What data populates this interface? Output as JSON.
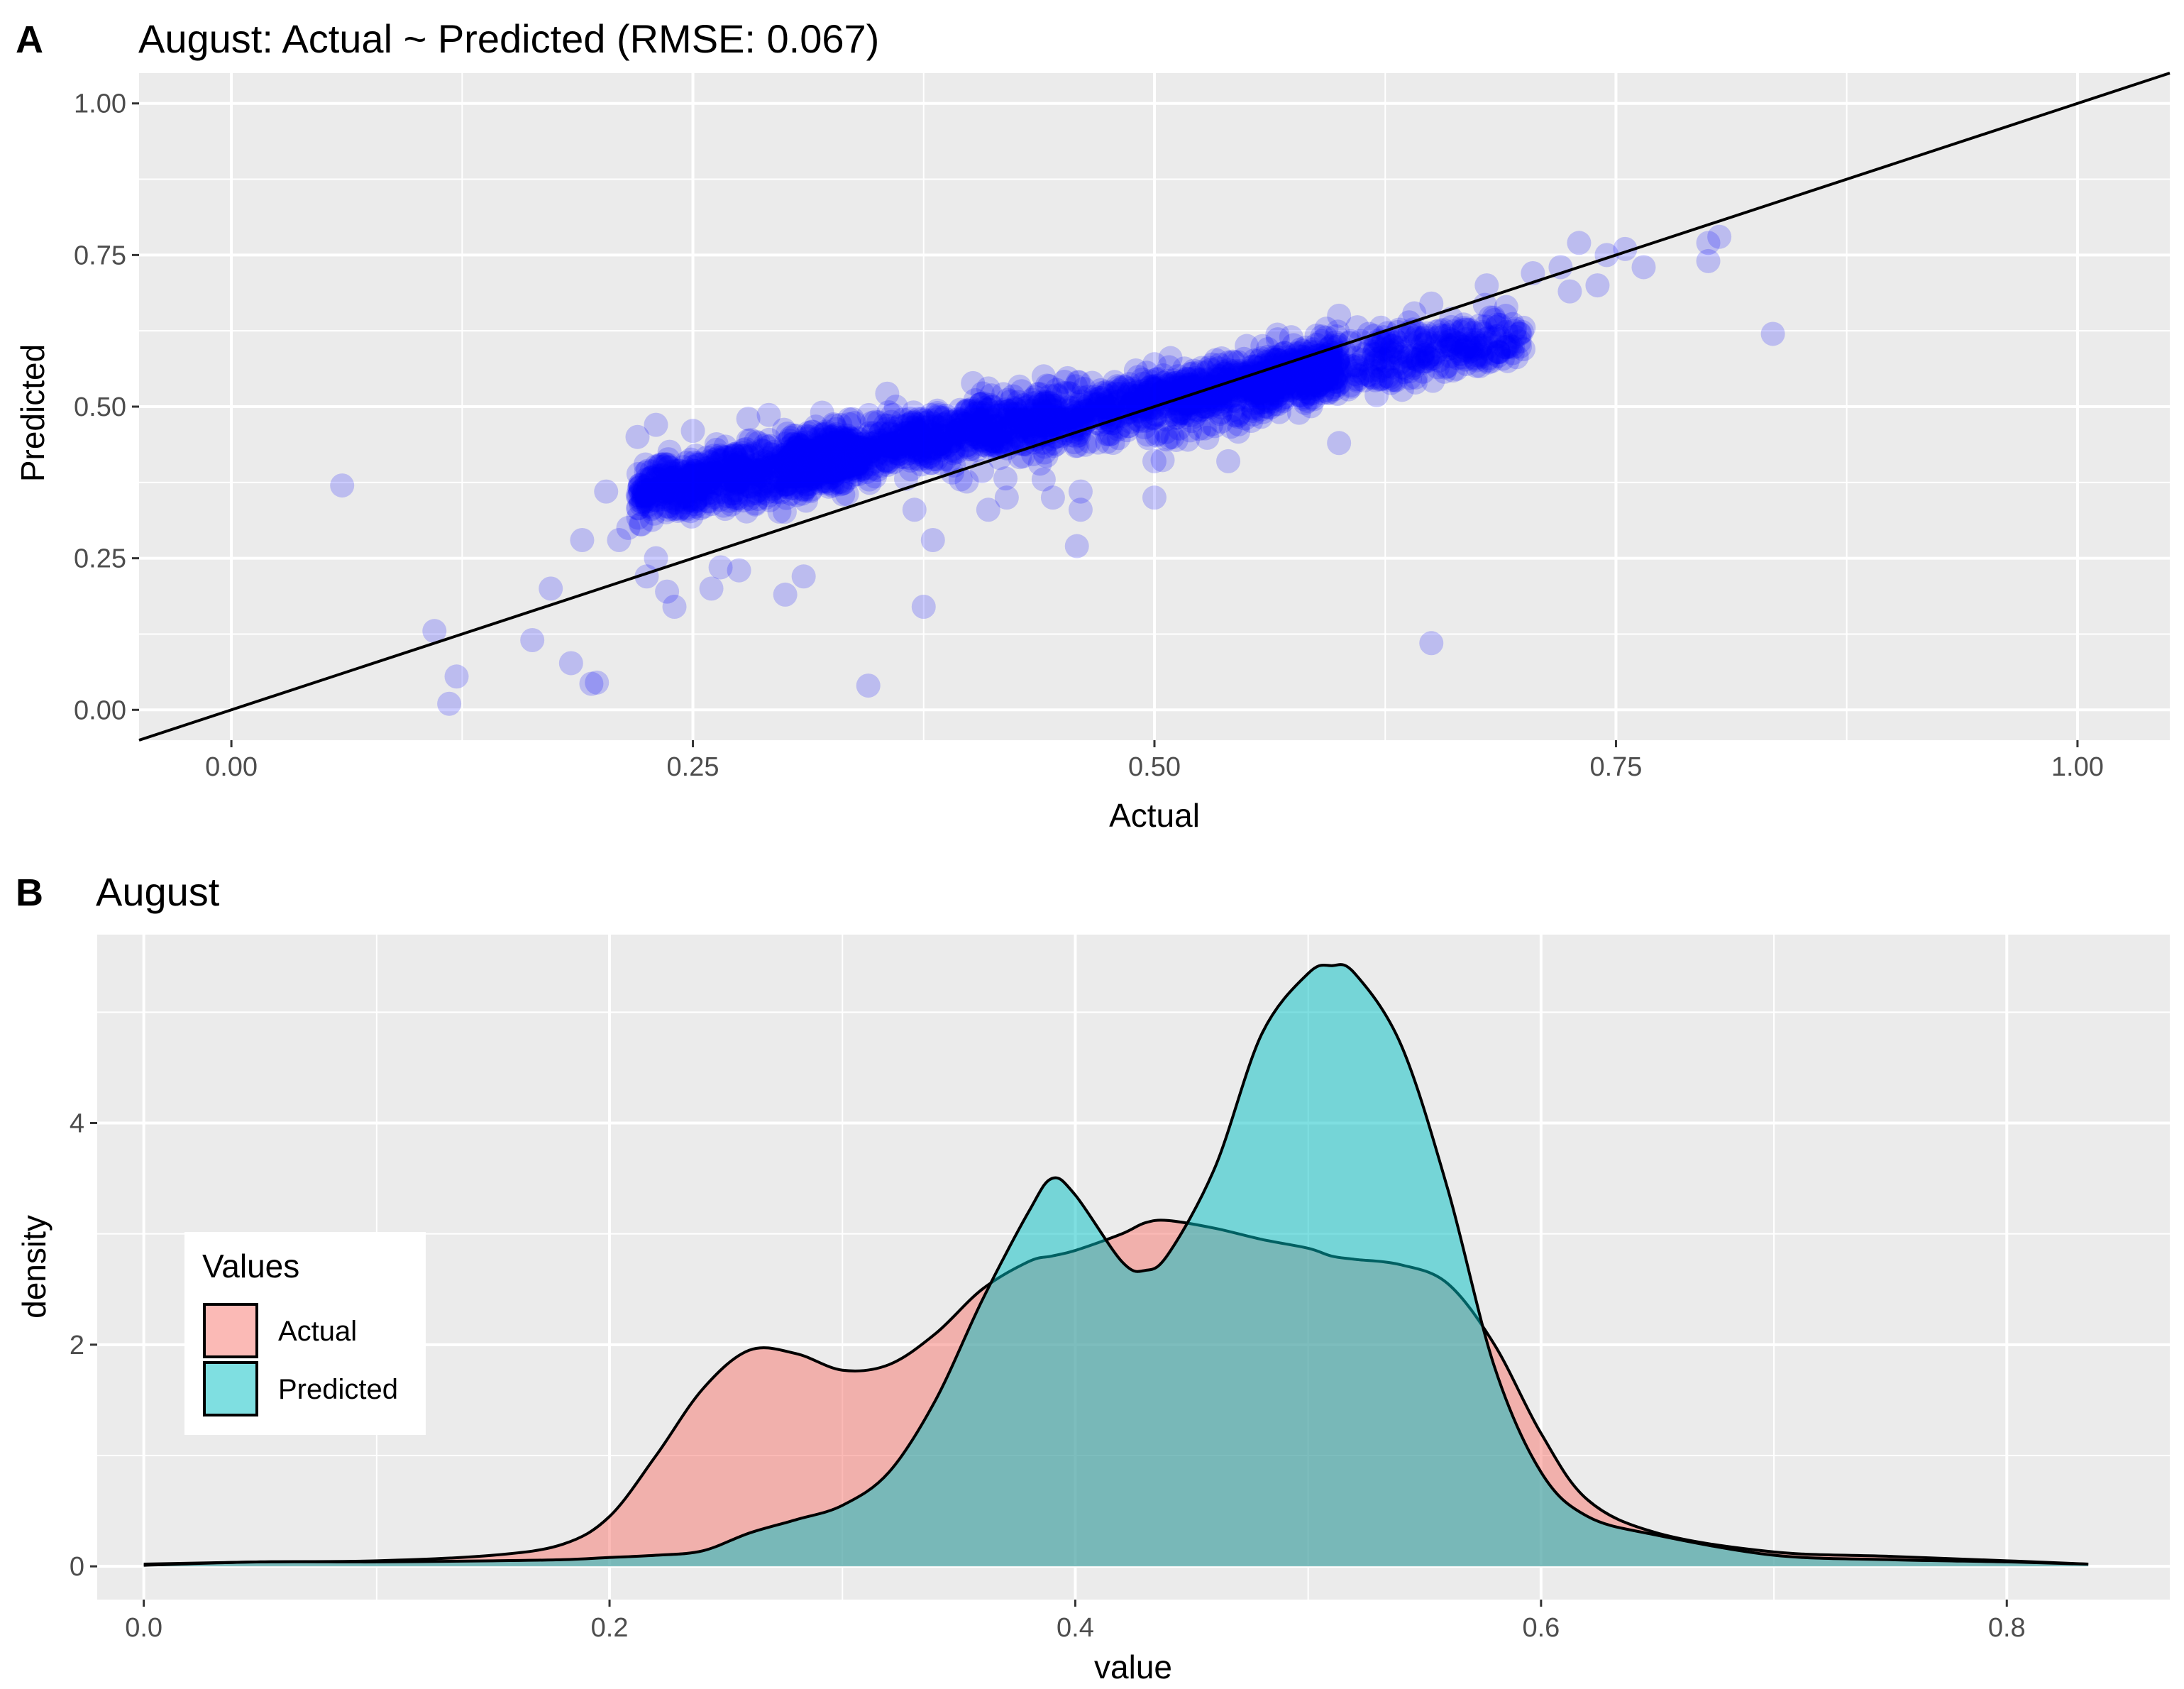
{
  "chart_data": [
    {
      "type": "scatter",
      "tag": "A",
      "title": "August: Actual ~ Predicted (RMSE: 0.067)",
      "xlabel": "Actual",
      "ylabel": "Predicted",
      "xlim": [
        -0.05,
        1.05
      ],
      "ylim": [
        -0.05,
        1.05
      ],
      "xticks": [
        "0.00",
        "0.25",
        "0.50",
        "0.75",
        "1.00"
      ],
      "yticks": [
        "0.00",
        "0.25",
        "0.50",
        "0.75",
        "1.00"
      ],
      "grid": true,
      "point_color": "#0000ff",
      "point_alpha": 0.2,
      "reference_line": {
        "type": "identity",
        "slope": 1,
        "intercept": 0,
        "color": "#000000"
      },
      "series": [
        {
          "values_described": "dense cloud of ~3000 points concentrated along predicted ≈ 0.24 + 0.54·actual for actual 0.22–0.65",
          "points": [
            [
              0.06,
              0.37
            ],
            [
              0.11,
              0.13
            ],
            [
              0.118,
              0.01
            ],
            [
              0.122,
              0.055
            ],
            [
              0.163,
              0.115
            ],
            [
              0.173,
              0.2
            ],
            [
              0.184,
              0.077
            ],
            [
              0.195,
              0.043
            ],
            [
              0.198,
              0.045
            ],
            [
              0.19,
              0.28
            ],
            [
              0.203,
              0.36
            ],
            [
              0.21,
              0.28
            ],
            [
              0.215,
              0.3
            ],
            [
              0.22,
              0.45
            ],
            [
              0.225,
              0.22
            ],
            [
              0.23,
              0.25
            ],
            [
              0.24,
              0.17
            ],
            [
              0.236,
              0.195
            ],
            [
              0.26,
              0.2
            ],
            [
              0.265,
              0.235
            ],
            [
              0.275,
              0.23
            ],
            [
              0.3,
              0.19
            ],
            [
              0.31,
              0.22
            ],
            [
              0.345,
              0.04
            ],
            [
              0.375,
              0.17
            ],
            [
              0.37,
              0.33
            ],
            [
              0.38,
              0.28
            ],
            [
              0.395,
              0.38
            ],
            [
              0.41,
              0.33
            ],
            [
              0.42,
              0.35
            ],
            [
              0.44,
              0.38
            ],
            [
              0.445,
              0.35
            ],
            [
              0.46,
              0.36
            ],
            [
              0.458,
              0.27
            ],
            [
              0.46,
              0.33
            ],
            [
              0.5,
              0.35
            ],
            [
              0.5,
              0.41
            ],
            [
              0.54,
              0.41
            ],
            [
              0.6,
              0.44
            ],
            [
              0.65,
              0.11
            ],
            [
              0.7,
              0.63
            ],
            [
              0.705,
              0.72
            ],
            [
              0.72,
              0.73
            ],
            [
              0.725,
              0.69
            ],
            [
              0.73,
              0.77
            ],
            [
              0.74,
              0.7
            ],
            [
              0.745,
              0.75
            ],
            [
              0.755,
              0.76
            ],
            [
              0.765,
              0.73
            ],
            [
              0.8,
              0.74
            ],
            [
              0.8,
              0.77
            ],
            [
              0.806,
              0.78
            ],
            [
              0.835,
              0.62
            ],
            [
              0.23,
              0.47
            ],
            [
              0.25,
              0.46
            ],
            [
              0.28,
              0.48
            ],
            [
              0.32,
              0.49
            ],
            [
              0.36,
              0.5
            ],
            [
              0.41,
              0.53
            ],
            [
              0.44,
              0.55
            ],
            [
              0.5,
              0.57
            ],
            [
              0.55,
              0.6
            ],
            [
              0.6,
              0.65
            ],
            [
              0.65,
              0.67
            ],
            [
              0.68,
              0.7
            ]
          ]
        }
      ]
    },
    {
      "type": "area",
      "subtype": "density",
      "tag": "B",
      "title": "August",
      "xlabel": "value",
      "ylabel": "density",
      "xlim": [
        -0.02,
        0.87
      ],
      "ylim": [
        -0.3,
        5.7
      ],
      "xticks": [
        "0.0",
        "0.2",
        "0.4",
        "0.6",
        "0.8"
      ],
      "yticks": [
        "0",
        "2",
        "4"
      ],
      "grid": true,
      "legend": {
        "title": "Values",
        "placement": "left-center"
      },
      "x": [
        0.0,
        0.05,
        0.1,
        0.15,
        0.18,
        0.2,
        0.22,
        0.24,
        0.26,
        0.28,
        0.3,
        0.32,
        0.34,
        0.36,
        0.38,
        0.39,
        0.4,
        0.42,
        0.43,
        0.44,
        0.46,
        0.48,
        0.5,
        0.51,
        0.52,
        0.54,
        0.56,
        0.58,
        0.6,
        0.62,
        0.65,
        0.7,
        0.75,
        0.8,
        0.835
      ],
      "series": [
        {
          "name": "Actual",
          "color": "#f8766d",
          "values": [
            0.02,
            0.04,
            0.05,
            0.1,
            0.2,
            0.45,
            1.0,
            1.6,
            1.95,
            1.92,
            1.77,
            1.82,
            2.1,
            2.5,
            2.75,
            2.8,
            2.85,
            3.0,
            3.1,
            3.12,
            3.05,
            2.95,
            2.87,
            2.8,
            2.77,
            2.72,
            2.55,
            2.0,
            1.2,
            0.6,
            0.3,
            0.13,
            0.09,
            0.05,
            0.02
          ]
        },
        {
          "name": "Predicted",
          "color": "#00bfc4",
          "values": [
            0.01,
            0.04,
            0.04,
            0.05,
            0.06,
            0.08,
            0.1,
            0.14,
            0.3,
            0.42,
            0.55,
            0.85,
            1.5,
            2.4,
            3.2,
            3.5,
            3.35,
            2.75,
            2.67,
            2.82,
            3.6,
            4.8,
            5.35,
            5.42,
            5.35,
            4.7,
            3.4,
            1.8,
            0.85,
            0.45,
            0.28,
            0.1,
            0.06,
            0.04,
            0.02
          ]
        }
      ]
    }
  ]
}
